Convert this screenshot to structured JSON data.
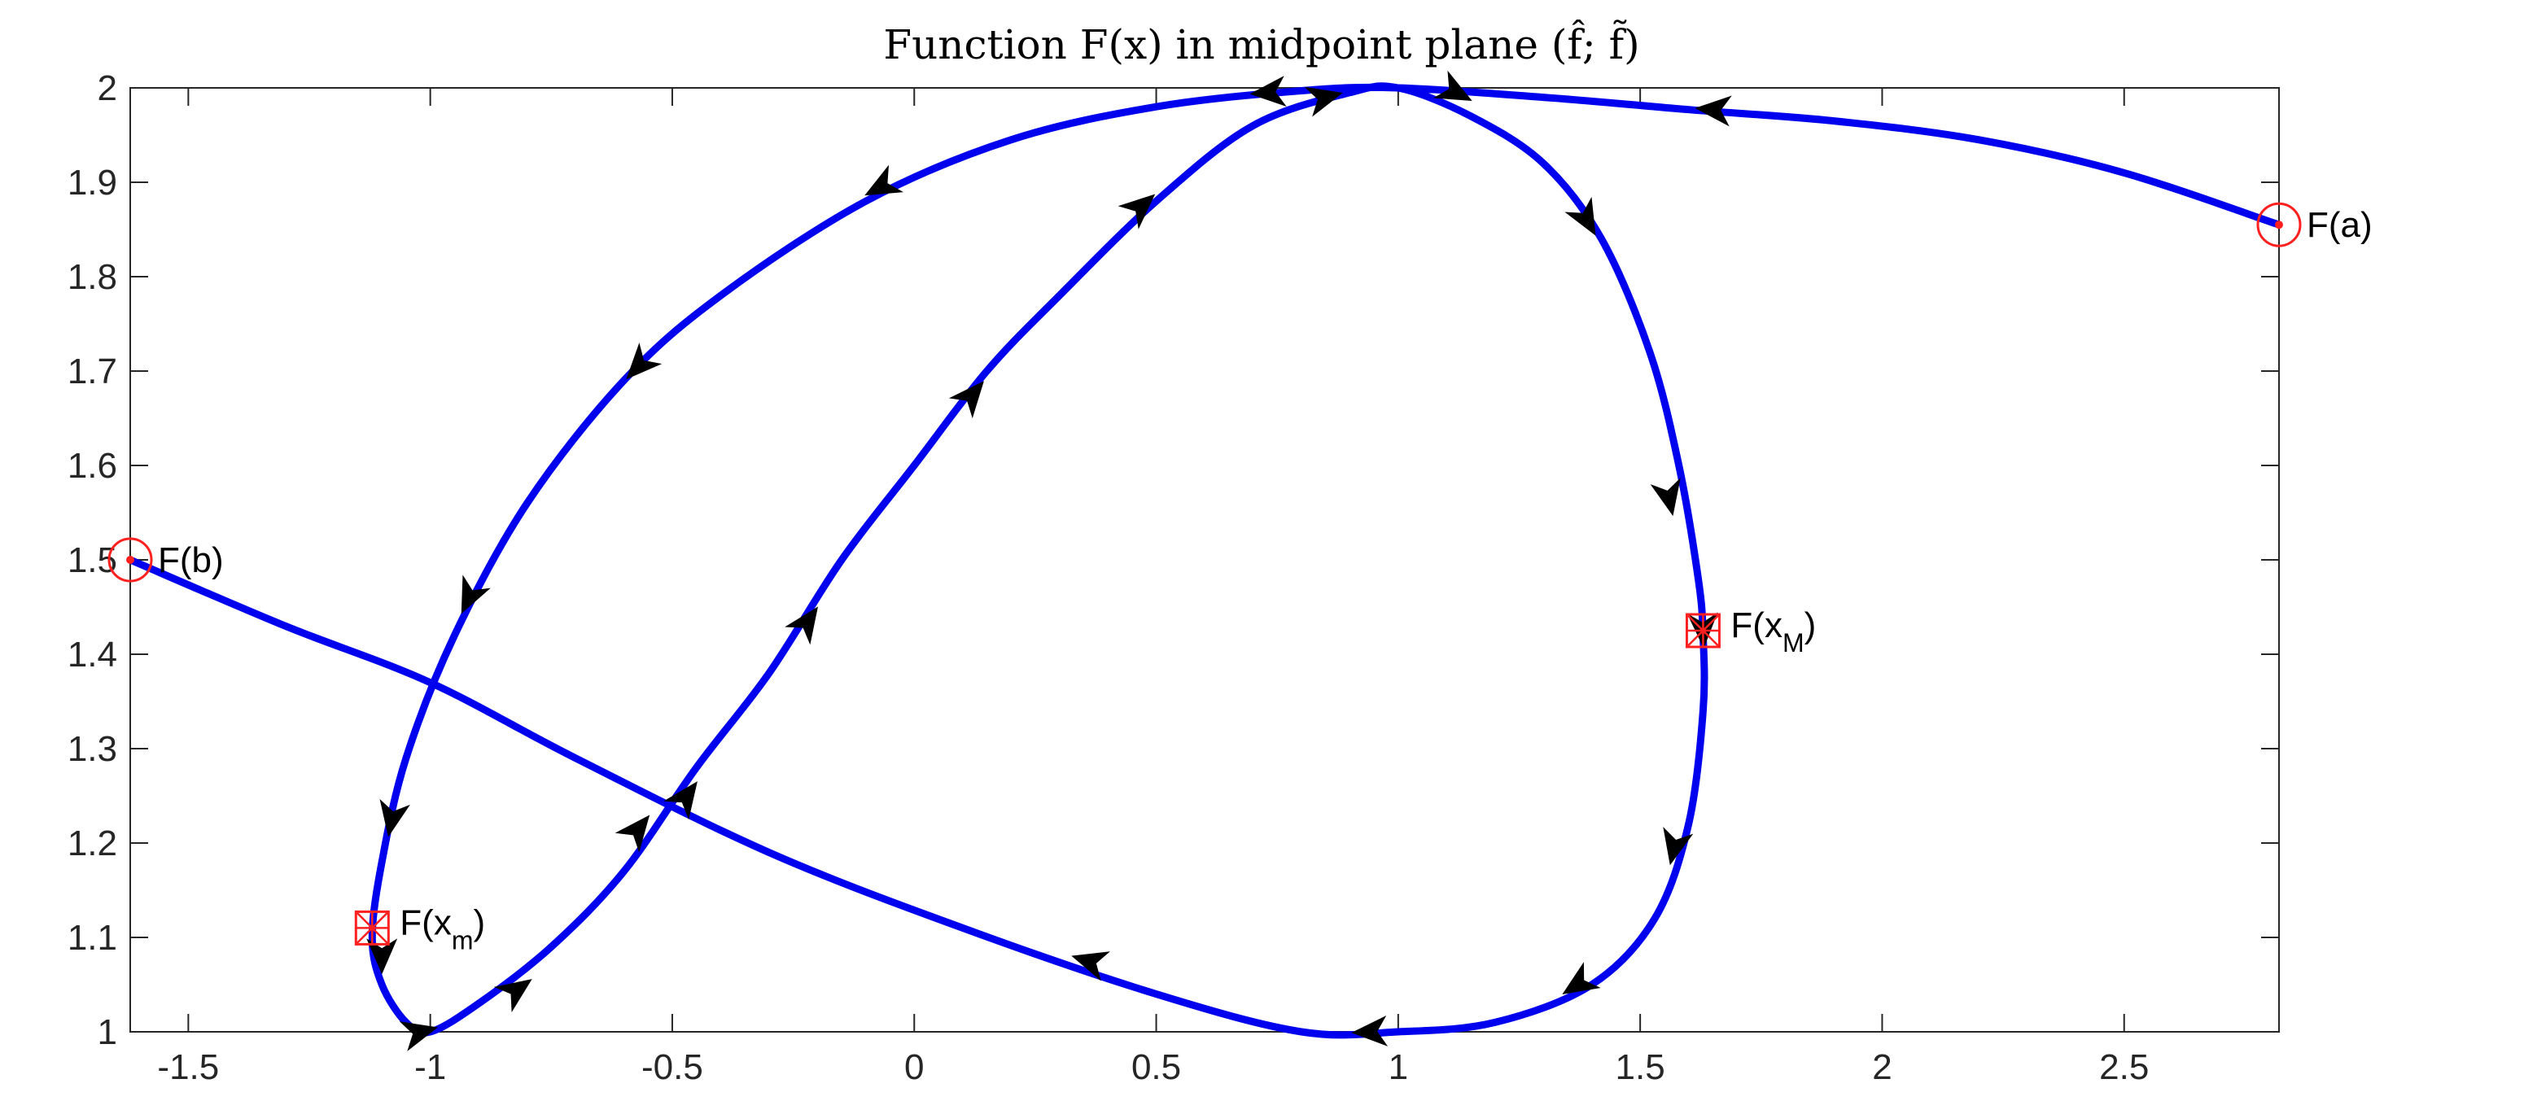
{
  "chart_data": {
    "type": "line",
    "title": "Function F(x) in midpoint plane (f̂; f̃)",
    "xlabel": "",
    "ylabel": "",
    "xlim": [
      -1.62,
      2.82
    ],
    "ylim": [
      1.0,
      2.0
    ],
    "xticks": [
      -1.5,
      -1,
      -0.5,
      0,
      0.5,
      1,
      1.5,
      2,
      2.5
    ],
    "xtick_labels": [
      "-1.5",
      "-1",
      "-0.5",
      "0",
      "0.5",
      "1",
      "1.5",
      "2",
      "2.5"
    ],
    "yticks": [
      1,
      1.1,
      1.2,
      1.3,
      1.4,
      1.5,
      1.6,
      1.7,
      1.8,
      1.9,
      2
    ],
    "ytick_labels": [
      "1",
      "1.1",
      "1.2",
      "1.3",
      "1.4",
      "1.5",
      "1.6",
      "1.7",
      "1.8",
      "1.9",
      "2"
    ],
    "grid": false,
    "series": [
      {
        "color": "#0000ee",
        "points": [
          [
            2.82,
            1.855
          ],
          [
            2.5,
            1.91
          ],
          [
            2.2,
            1.945
          ],
          [
            1.9,
            1.965
          ],
          [
            1.6,
            1.977
          ],
          [
            1.3,
            1.99
          ],
          [
            1.0,
            2.0
          ],
          [
            0.8,
            1.997
          ],
          [
            0.5,
            1.98
          ],
          [
            0.2,
            1.945
          ],
          [
            -0.1,
            1.88
          ],
          [
            -0.4,
            1.78
          ],
          [
            -0.6,
            1.69
          ],
          [
            -0.8,
            1.56
          ],
          [
            -0.95,
            1.42
          ],
          [
            -1.05,
            1.29
          ],
          [
            -1.1,
            1.18
          ],
          [
            -1.12,
            1.1
          ],
          [
            -1.1,
            1.05
          ],
          [
            -1.05,
            1.01
          ],
          [
            -1.0,
            1.0
          ],
          [
            -0.9,
            1.03
          ],
          [
            -0.75,
            1.09
          ],
          [
            -0.6,
            1.17
          ],
          [
            -0.45,
            1.28
          ],
          [
            -0.3,
            1.38
          ],
          [
            -0.15,
            1.5
          ],
          [
            0.0,
            1.6
          ],
          [
            0.15,
            1.7
          ],
          [
            0.3,
            1.78
          ],
          [
            0.5,
            1.88
          ],
          [
            0.7,
            1.96
          ],
          [
            0.9,
            1.995
          ],
          [
            1.0,
            2.0
          ],
          [
            1.15,
            1.97
          ],
          [
            1.3,
            1.92
          ],
          [
            1.42,
            1.84
          ],
          [
            1.52,
            1.72
          ],
          [
            1.58,
            1.6
          ],
          [
            1.62,
            1.48
          ],
          [
            1.63,
            1.42
          ],
          [
            1.63,
            1.34
          ],
          [
            1.6,
            1.22
          ],
          [
            1.53,
            1.12
          ],
          [
            1.4,
            1.05
          ],
          [
            1.2,
            1.01
          ],
          [
            1.0,
            1.0
          ],
          [
            0.8,
            1.0
          ],
          [
            0.5,
            1.04
          ],
          [
            0.1,
            1.11
          ],
          [
            -0.3,
            1.19
          ],
          [
            -0.7,
            1.29
          ],
          [
            -1.0,
            1.37
          ],
          [
            -1.3,
            1.43
          ],
          [
            -1.62,
            1.5
          ]
        ],
        "arrows": [
          {
            "x": 1.65,
            "y": 1.977,
            "dir": "left"
          },
          {
            "x": 0.73,
            "y": 1.995,
            "dir": "left"
          },
          {
            "x": -0.07,
            "y": 1.895,
            "dir": "down"
          },
          {
            "x": -0.57,
            "y": 1.705,
            "dir": "down"
          },
          {
            "x": -0.92,
            "y": 1.46,
            "dir": "down"
          },
          {
            "x": -1.08,
            "y": 1.225,
            "dir": "down"
          },
          {
            "x": -1.1,
            "y": 1.08,
            "dir": "down"
          },
          {
            "x": -1.02,
            "y": 1.0,
            "dir": "right"
          },
          {
            "x": -0.82,
            "y": 1.045,
            "dir": "up"
          },
          {
            "x": -0.57,
            "y": 1.215,
            "dir": "up"
          },
          {
            "x": -0.47,
            "y": 1.25,
            "dir": "up"
          },
          {
            "x": -0.22,
            "y": 1.435,
            "dir": "up"
          },
          {
            "x": 0.12,
            "y": 1.675,
            "dir": "up"
          },
          {
            "x": 0.47,
            "y": 1.875,
            "dir": "up"
          },
          {
            "x": 0.85,
            "y": 1.99,
            "dir": "up"
          },
          {
            "x": 1.12,
            "y": 1.995,
            "dir": "right"
          },
          {
            "x": 1.39,
            "y": 1.86,
            "dir": "down"
          },
          {
            "x": 1.56,
            "y": 1.565,
            "dir": "down"
          },
          {
            "x": 1.63,
            "y": 1.425,
            "dir": "down"
          },
          {
            "x": 1.57,
            "y": 1.195,
            "dir": "down"
          },
          {
            "x": 1.37,
            "y": 1.05,
            "dir": "down"
          },
          {
            "x": 0.94,
            "y": 1.0,
            "dir": "left"
          },
          {
            "x": 0.36,
            "y": 1.075,
            "dir": "left"
          },
          {
            "x": -0.47,
            "y": 1.25,
            "dir": "left"
          }
        ]
      }
    ],
    "points": [
      {
        "name": "F(a)",
        "x": 2.82,
        "y": 1.855,
        "marker": "circle",
        "label": "F(a)"
      },
      {
        "name": "F(b)",
        "x": -1.62,
        "y": 1.5,
        "marker": "circle",
        "label": "F(b)"
      },
      {
        "name": "F(x_M)",
        "x": 1.63,
        "y": 1.425,
        "marker": "square-x",
        "label_main": "F(x",
        "label_sub": "M",
        "label_close": ")"
      },
      {
        "name": "F(x_m)",
        "x": -1.12,
        "y": 1.11,
        "marker": "square-x",
        "label_main": "F(x",
        "label_sub": "m",
        "label_close": ")"
      }
    ]
  }
}
